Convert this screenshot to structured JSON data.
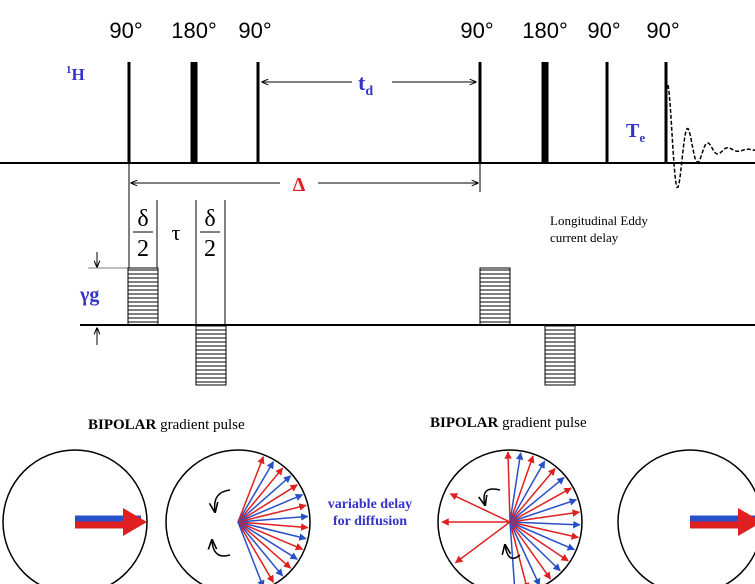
{
  "pulses": [
    {
      "label": "90°"
    },
    {
      "label": "180°"
    },
    {
      "label": "90°"
    },
    {
      "label": "90°"
    },
    {
      "label": "180°"
    },
    {
      "label": "90°"
    },
    {
      "label": "90°"
    }
  ],
  "nucleus": {
    "sup": "1",
    "base": "H"
  },
  "td": {
    "base": "t",
    "sub": "d"
  },
  "te": {
    "base": "T",
    "sub": "e"
  },
  "big_delta": "Δ",
  "delta_half": [
    {
      "num": "δ",
      "den": "2"
    },
    {
      "num": "δ",
      "den": "2"
    }
  ],
  "tau": "τ",
  "gamma_g": "γg",
  "eddy": [
    "Longitudinal Eddy",
    "current delay"
  ],
  "bipolar": [
    {
      "bold": "BIPOLAR",
      "rest": "gradient pulse"
    },
    {
      "bold": "BIPOLAR",
      "rest": "gradient pulse"
    }
  ],
  "variable_delay": [
    "variable delay",
    "for diffusion"
  ]
}
